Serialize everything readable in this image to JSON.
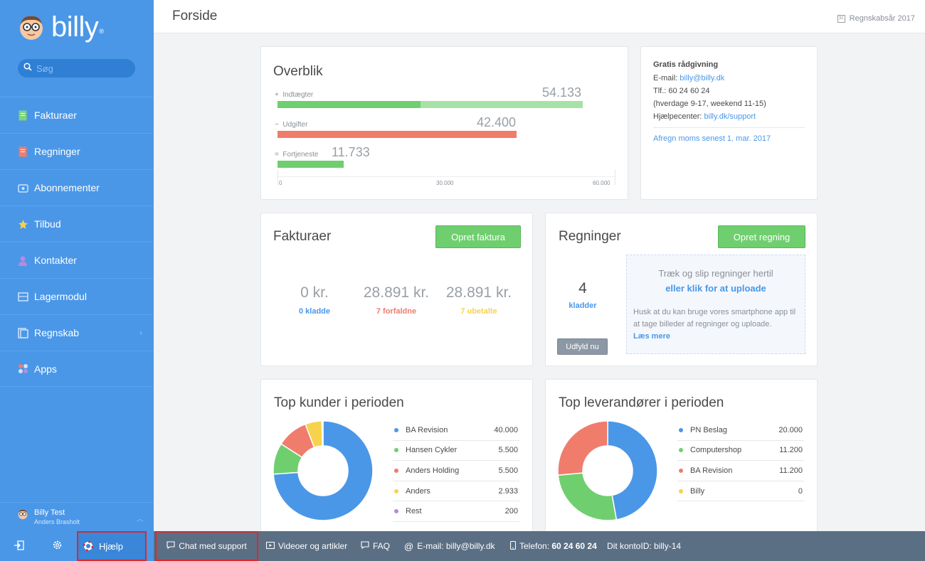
{
  "brand": {
    "name": "billy",
    "reg": "®"
  },
  "search": {
    "placeholder": "Søg"
  },
  "nav": {
    "items": [
      {
        "label": "Fakturaer",
        "color": "#7ed37e"
      },
      {
        "label": "Regninger",
        "color": "#f07c6c"
      },
      {
        "label": "Abonnementer",
        "color": "#cfe4fb"
      },
      {
        "label": "Tilbud",
        "color": "#f7d24c"
      },
      {
        "label": "Kontakter",
        "color": "#b58be0"
      },
      {
        "label": "Lagermodul",
        "color": "#cfe4fb"
      },
      {
        "label": "Regnskab",
        "color": "#cfe4fb"
      },
      {
        "label": "Apps",
        "color": "#f07c6c"
      }
    ]
  },
  "user": {
    "name": "Billy Test",
    "sub": "Anders Brasholt"
  },
  "topbar": {
    "title": "Forside",
    "fiscal_year": "Regnskabsår 2017"
  },
  "overblik": {
    "title": "Overblik",
    "rows": [
      {
        "sign": "+",
        "label": "Indtægter",
        "value": "54.133"
      },
      {
        "sign": "−",
        "label": "Udgifter",
        "value": "42.400"
      },
      {
        "sign": "=",
        "label": "Fortjeneste",
        "value": "11.733"
      }
    ],
    "ticks": [
      "0",
      "30.000",
      "60.000"
    ]
  },
  "info": {
    "heading": "Gratis rådgivning",
    "email_label": "E-mail:",
    "email": "billy@billy.dk",
    "phone": "Tlf.: 60 24 60 24",
    "hours": "(hverdage 9-17, weekend 11-15)",
    "help_label": "Hjælpecenter:",
    "help_link": "billy.dk/support",
    "vat": "Afregn moms senest 1. mar. 2017"
  },
  "fakturaer": {
    "title": "Fakturaer",
    "button": "Opret faktura",
    "stats": [
      {
        "big": "0 kr.",
        "small": "0 kladde",
        "color": "#4a97e8"
      },
      {
        "big": "28.891 kr.",
        "small": "7 forfaldne",
        "color": "#f07c6c"
      },
      {
        "big": "28.891 kr.",
        "small": "7 ubetalte",
        "color": "#f7d24c"
      }
    ]
  },
  "regninger": {
    "title": "Regninger",
    "button": "Opret regning",
    "count": "4",
    "count_label": "kladder",
    "fill_button": "Udfyld nu",
    "drop_line1": "Træk og slip regninger hertil",
    "drop_line2": "eller klik for at uploade",
    "drop_hint": "Husk at du kan bruge vores smartphone app til at tage billeder af regninger og uploade.",
    "drop_more": "Læs mere"
  },
  "top_kunder": {
    "title": "Top kunder i perioden",
    "items": [
      {
        "name": "BA Revision",
        "value": "40.000",
        "color": "#4a97e8"
      },
      {
        "name": "Hansen Cykler",
        "value": "5.500",
        "color": "#6fcf6f"
      },
      {
        "name": "Anders Holding",
        "value": "5.500",
        "color": "#f07c6c"
      },
      {
        "name": "Anders",
        "value": "2.933",
        "color": "#f7d24c"
      },
      {
        "name": "Rest",
        "value": "200",
        "color": "#b58be0"
      }
    ]
  },
  "top_leverandorer": {
    "title": "Top leverandører i perioden",
    "items": [
      {
        "name": "PN Beslag",
        "value": "20.000",
        "color": "#4a97e8"
      },
      {
        "name": "Computershop",
        "value": "11.200",
        "color": "#6fcf6f"
      },
      {
        "name": "BA Revision",
        "value": "11.200",
        "color": "#f07c6c"
      },
      {
        "name": "Billy",
        "value": "0",
        "color": "#f7d24c"
      }
    ]
  },
  "footer": {
    "help": "Hjælp",
    "chat": "Chat med support",
    "videos": "Videoer og artikler",
    "faq": "FAQ",
    "email": "E-mail: billy@billy.dk",
    "phone_label": "Telefon:",
    "phone": "60 24 60 24",
    "account": "Dit kontoID: billy-14"
  }
}
